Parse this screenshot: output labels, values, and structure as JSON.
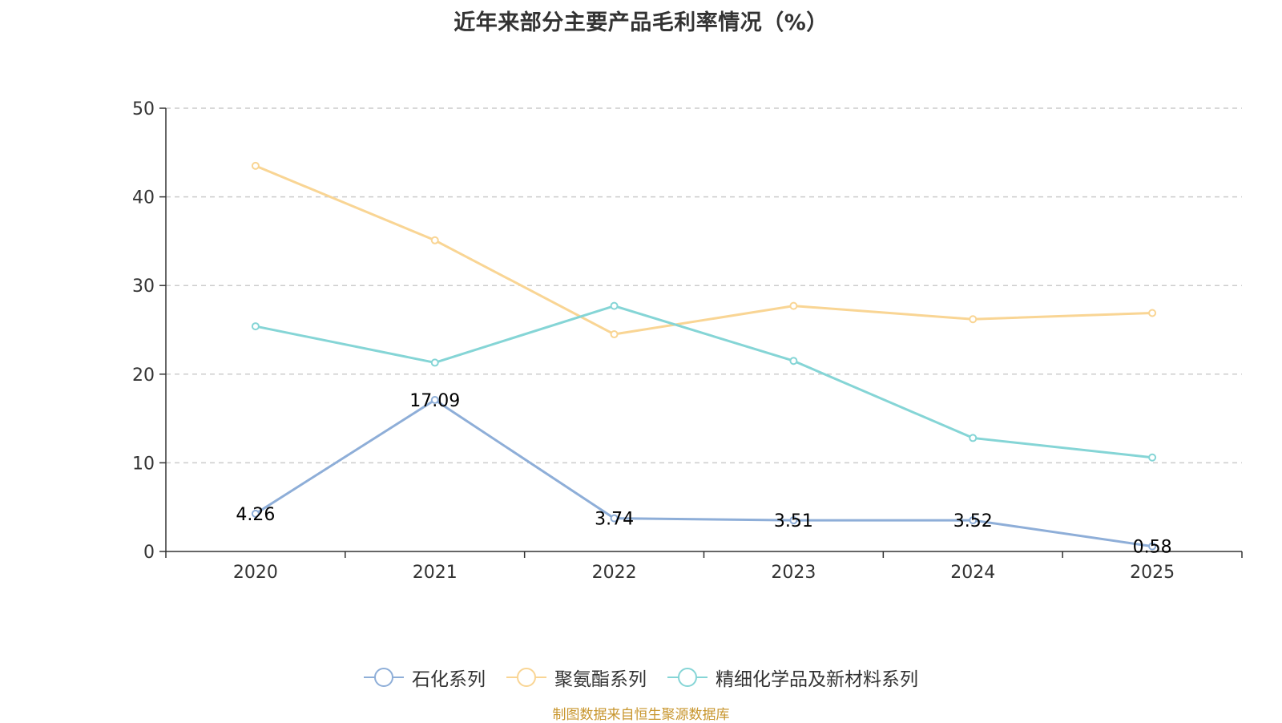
{
  "chart_data": {
    "type": "line",
    "title": "近年来部分主要产品毛利率情况（%）",
    "categories": [
      "2020",
      "2021",
      "2022",
      "2023",
      "2024",
      "2025"
    ],
    "ylim": [
      0,
      50
    ],
    "yticks": [
      0,
      10,
      20,
      30,
      40,
      50
    ],
    "grid": true,
    "legend_position": "bottom",
    "series": [
      {
        "name": "石化系列",
        "color": "#8eaed8",
        "values": [
          4.26,
          17.09,
          3.74,
          3.51,
          3.52,
          0.58
        ],
        "data_labels": [
          "4.26",
          "17.09",
          "3.74",
          "3.51",
          "3.52",
          "0.58"
        ]
      },
      {
        "name": "聚氨酯系列",
        "color": "#f9d594",
        "values": [
          43.5,
          35.1,
          24.5,
          27.7,
          26.2,
          26.9
        ]
      },
      {
        "name": "精细化学品及新材料系列",
        "color": "#85d5d6",
        "values": [
          25.4,
          21.3,
          27.7,
          21.5,
          12.8,
          10.6
        ]
      }
    ]
  },
  "source_note": "制图数据来自恒生聚源数据库"
}
